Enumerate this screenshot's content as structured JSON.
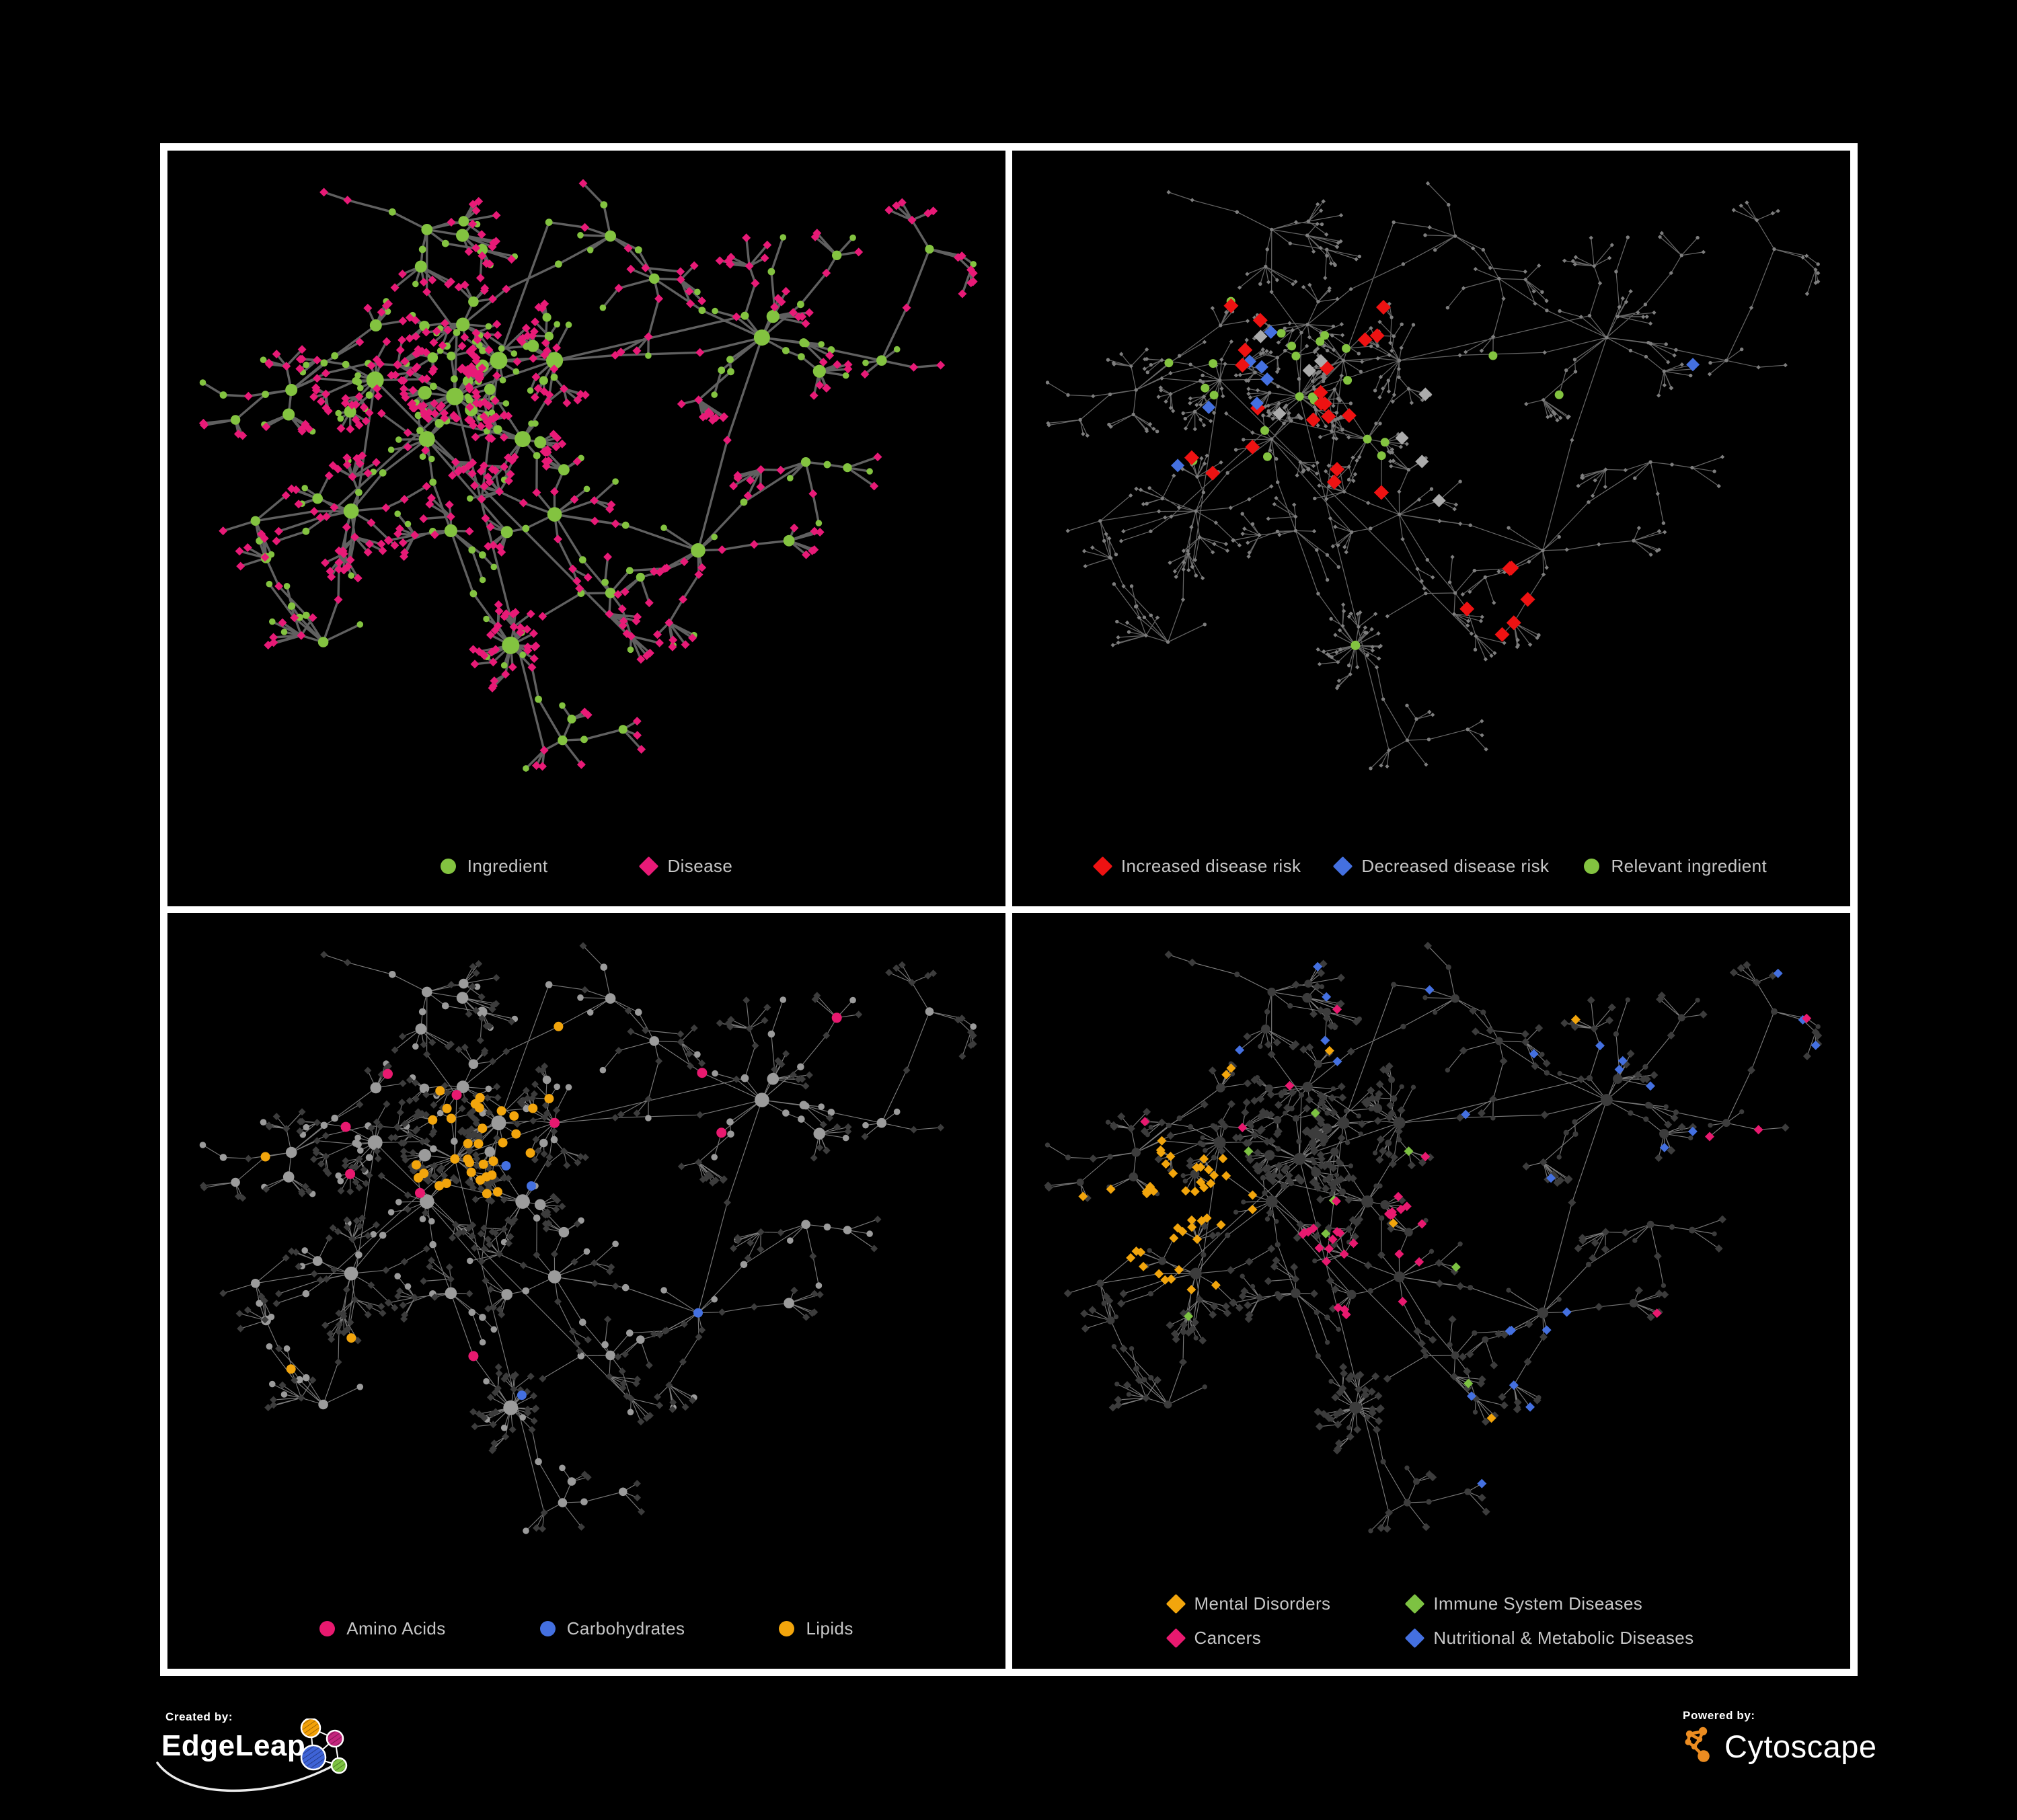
{
  "page": {
    "background": "#000000",
    "frame_color": "#FFFFFF"
  },
  "palette": {
    "ingredient_green": "#83C340",
    "disease_pink": "#E81A77",
    "risk_red": "#EE1212",
    "risk_blue": "#4470E0",
    "neutral_silver": "#ABABAB",
    "lipids_amber": "#F2A50C",
    "amino_cancer_pink": "#E8196F",
    "immune_green": "#7DC242",
    "dark_node": "#3C3C3C",
    "legend_text": "#C6C6C6",
    "edge_dark_panel": "#686868",
    "edge_light_panel": "#8E8E8E"
  },
  "panels": [
    {
      "name": "ingredient-disease-network",
      "legend": {
        "items": [
          {
            "shape": "circle",
            "color": "#83C340",
            "label": "Ingredient"
          },
          {
            "shape": "diamond",
            "color": "#E81A77",
            "label": "Disease"
          }
        ],
        "gap": 140
      }
    },
    {
      "name": "disease-risk-network",
      "legend": {
        "items": [
          {
            "shape": "diamond",
            "color": "#EE1212",
            "label": "Increased disease risk"
          },
          {
            "shape": "diamond",
            "color": "#4470E0",
            "label": "Decreased disease risk"
          },
          {
            "shape": "circle",
            "color": "#83C340",
            "label": "Relevant ingredient"
          }
        ],
        "gap": 52
      }
    },
    {
      "name": "nutrient-class-network",
      "legend": {
        "items": [
          {
            "shape": "circle",
            "color": "#E8196F",
            "label": "Amino Acids"
          },
          {
            "shape": "circle",
            "color": "#4470E0",
            "label": "Carbohydrates"
          },
          {
            "shape": "circle",
            "color": "#F2A50C",
            "label": "Lipids"
          }
        ],
        "gap": 140
      }
    },
    {
      "name": "disease-class-network",
      "legend": {
        "rows": [
          [
            {
              "shape": "diamond",
              "color": "#F2A50C",
              "label": "Mental Disorders"
            },
            {
              "shape": "diamond",
              "color": "#7DC242",
              "label": "Immune System Diseases"
            }
          ],
          [
            {
              "shape": "diamond",
              "color": "#E8196F",
              "label": "Cancers"
            },
            {
              "shape": "diamond",
              "color": "#4470E0",
              "label": "Nutritional & Metabolic Diseases"
            }
          ]
        ]
      }
    }
  ],
  "credits": {
    "created_by": "Created by:",
    "brand_left": "EdgeLeap",
    "powered_by": "Powered by:",
    "brand_right": "Cytoscape",
    "edgeleap_icon_colors": {
      "orange": "#F2A007",
      "magenta": "#C4257E",
      "blue": "#3E63D6",
      "green": "#7DC242"
    },
    "cytoscape_orange": "#EB8C21"
  },
  "network": {
    "seed": 1337,
    "clusters": [
      [
        0.335,
        0.355,
        12,
        0.026,
        2,
        0.4,
        7,
        0
      ],
      [
        0.235,
        0.33,
        11,
        0.026,
        2,
        0.4,
        7,
        0
      ],
      [
        0.3,
        0.42,
        9,
        0.026,
        2,
        0.4,
        6,
        0
      ],
      [
        0.39,
        0.3,
        9,
        0.026,
        2,
        0.4,
        6,
        0
      ],
      [
        0.345,
        0.245,
        8,
        0.028,
        2,
        0.35,
        6,
        0
      ],
      [
        0.46,
        0.3,
        9,
        0.028,
        2,
        0.4,
        6,
        0
      ],
      [
        0.42,
        0.42,
        8,
        0.028,
        2,
        0.35,
        6,
        0
      ],
      [
        0.13,
        0.345,
        7,
        0.04,
        3,
        0.5,
        8,
        0
      ],
      [
        0.205,
        0.53,
        9,
        0.038,
        3,
        0.5,
        9,
        0
      ],
      [
        0.33,
        0.56,
        7,
        0.036,
        2,
        0.45,
        7,
        0
      ],
      [
        0.46,
        0.535,
        8,
        0.036,
        2,
        0.45,
        7,
        0
      ],
      [
        0.3,
        0.1,
        6,
        0.042,
        3,
        0.45,
        7,
        0
      ],
      [
        0.53,
        0.11,
        5,
        0.042,
        3,
        0.45,
        6,
        0
      ],
      [
        0.72,
        0.265,
        9,
        0.042,
        3,
        0.5,
        8,
        0
      ],
      [
        0.87,
        0.3,
        4,
        0.038,
        2,
        0.45,
        6,
        0
      ],
      [
        0.64,
        0.59,
        7,
        0.04,
        3,
        0.45,
        7,
        0
      ],
      [
        0.17,
        0.73,
        5,
        0.042,
        3,
        0.5,
        7,
        0
      ],
      [
        0.53,
        0.655,
        4,
        0.036,
        2,
        0.4,
        6,
        0
      ],
      [
        0.405,
        0.735,
        24,
        0.03,
        1,
        0.1,
        4,
        1
      ],
      [
        0.085,
        0.545,
        4,
        0.04,
        2,
        0.45,
        6,
        0
      ],
      [
        0.585,
        0.175,
        4,
        0.04,
        2,
        0.4,
        6,
        0
      ],
      [
        0.775,
        0.455,
        4,
        0.04,
        2,
        0.4,
        6,
        0
      ],
      [
        0.47,
        0.88,
        4,
        0.036,
        2,
        0.45,
        6,
        0
      ],
      [
        0.93,
        0.13,
        3,
        0.04,
        2,
        0.4,
        5,
        0
      ]
    ],
    "connectors": [
      [
        0,
        1
      ],
      [
        0,
        2
      ],
      [
        0,
        3
      ],
      [
        3,
        4
      ],
      [
        3,
        5
      ],
      [
        0,
        6
      ],
      [
        5,
        6
      ],
      [
        1,
        7
      ],
      [
        2,
        8
      ],
      [
        0,
        11
      ],
      [
        4,
        12
      ],
      [
        5,
        13
      ],
      [
        13,
        14
      ],
      [
        10,
        15
      ],
      [
        9,
        18
      ],
      [
        8,
        16
      ],
      [
        15,
        13
      ],
      [
        17,
        15
      ],
      [
        19,
        8
      ],
      [
        20,
        12
      ],
      [
        20,
        13
      ],
      [
        10,
        17
      ],
      [
        6,
        10
      ],
      [
        2,
        9
      ],
      [
        18,
        22
      ],
      [
        14,
        23
      ],
      [
        15,
        21
      ]
    ],
    "cross_links": 12,
    "chain_circle_prob": 0.45,
    "leaf_circle_prob": 0.12
  }
}
